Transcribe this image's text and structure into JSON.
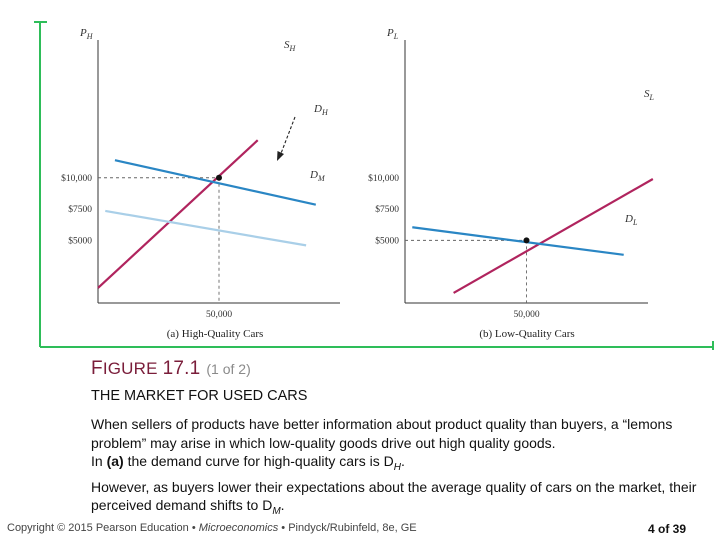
{
  "chart_data": [
    {
      "type": "line",
      "caption": "(a) High-Quality Cars",
      "ylabel": "P",
      "ylabel_sub": "H",
      "ylim": [
        0,
        21000
      ],
      "xlim": [
        0,
        100000
      ],
      "y_ticks": [
        {
          "value": 10000,
          "label": "$10,000"
        },
        {
          "value": 7500,
          "label": "$7500"
        },
        {
          "value": 5000,
          "label": "$5000"
        }
      ],
      "x_ticks": [
        {
          "value": 50000,
          "label": "50,000"
        }
      ],
      "series": [
        {
          "name": "S",
          "sub": "H",
          "color": "#b0245e",
          "x": [
            0,
            66000
          ],
          "y": [
            1200,
            13000
          ]
        },
        {
          "name": "D",
          "sub": "H",
          "color": "#2a86c4",
          "x": [
            7000,
            90000
          ],
          "y": [
            11400,
            7850
          ]
        },
        {
          "name": "D",
          "sub": "M",
          "color": "#a9cfe8",
          "x": [
            3000,
            86000
          ],
          "y": [
            7350,
            4600
          ]
        }
      ],
      "equilibrium": {
        "x": 50000,
        "y": 10000
      },
      "annotation": "shift arrow from D_H to D_M"
    },
    {
      "type": "line",
      "caption": "(b) Low-Quality Cars",
      "ylabel": "P",
      "ylabel_sub": "L",
      "ylim": [
        0,
        21000
      ],
      "xlim": [
        0,
        100000
      ],
      "y_ticks": [
        {
          "value": 10000,
          "label": "$10,000"
        },
        {
          "value": 7500,
          "label": "$7500"
        },
        {
          "value": 5000,
          "label": "$5000"
        }
      ],
      "x_ticks": [
        {
          "value": 50000,
          "label": "50,000"
        }
      ],
      "series": [
        {
          "name": "S",
          "sub": "L",
          "color": "#b0245e",
          "x": [
            20000,
            102000
          ],
          "y": [
            800,
            9900
          ]
        },
        {
          "name": "D",
          "sub": "L",
          "color": "#2a86c4",
          "x": [
            3000,
            90000
          ],
          "y": [
            6050,
            3850
          ]
        }
      ],
      "equilibrium": {
        "x": 50000,
        "y": 5000
      }
    }
  ],
  "figure": {
    "label_prefix": "F",
    "label_mid": "IGURE",
    "label_num": "17.1",
    "label_part": "(1 of 2)",
    "title": "THE MARKET FOR USED CARS"
  },
  "body": {
    "p1": "When sellers of products have better information about product quality than buyers, a “lemons problem” may arise in which low-quality goods drive out high quality goods.",
    "p2": "In (a) the demand curve for high-quality cars is D",
    "p2_sub": "H",
    "p3": "However, as buyers lower their expectations about the average quality of cars on the market, their perceived demand shifts to D",
    "p3_sub": "M"
  },
  "footer": {
    "copyright": "Copyright © 2015 Pearson Education •",
    "book": "Microeconomics",
    "authors": "• Pindyck/Rubinfeld, 8e, GE",
    "page": "4 of 39"
  },
  "colors": {
    "frame": "#2ebd59",
    "supply": "#b0245e",
    "demand": "#2a86c4",
    "demand_shift": "#a9cfe8"
  }
}
